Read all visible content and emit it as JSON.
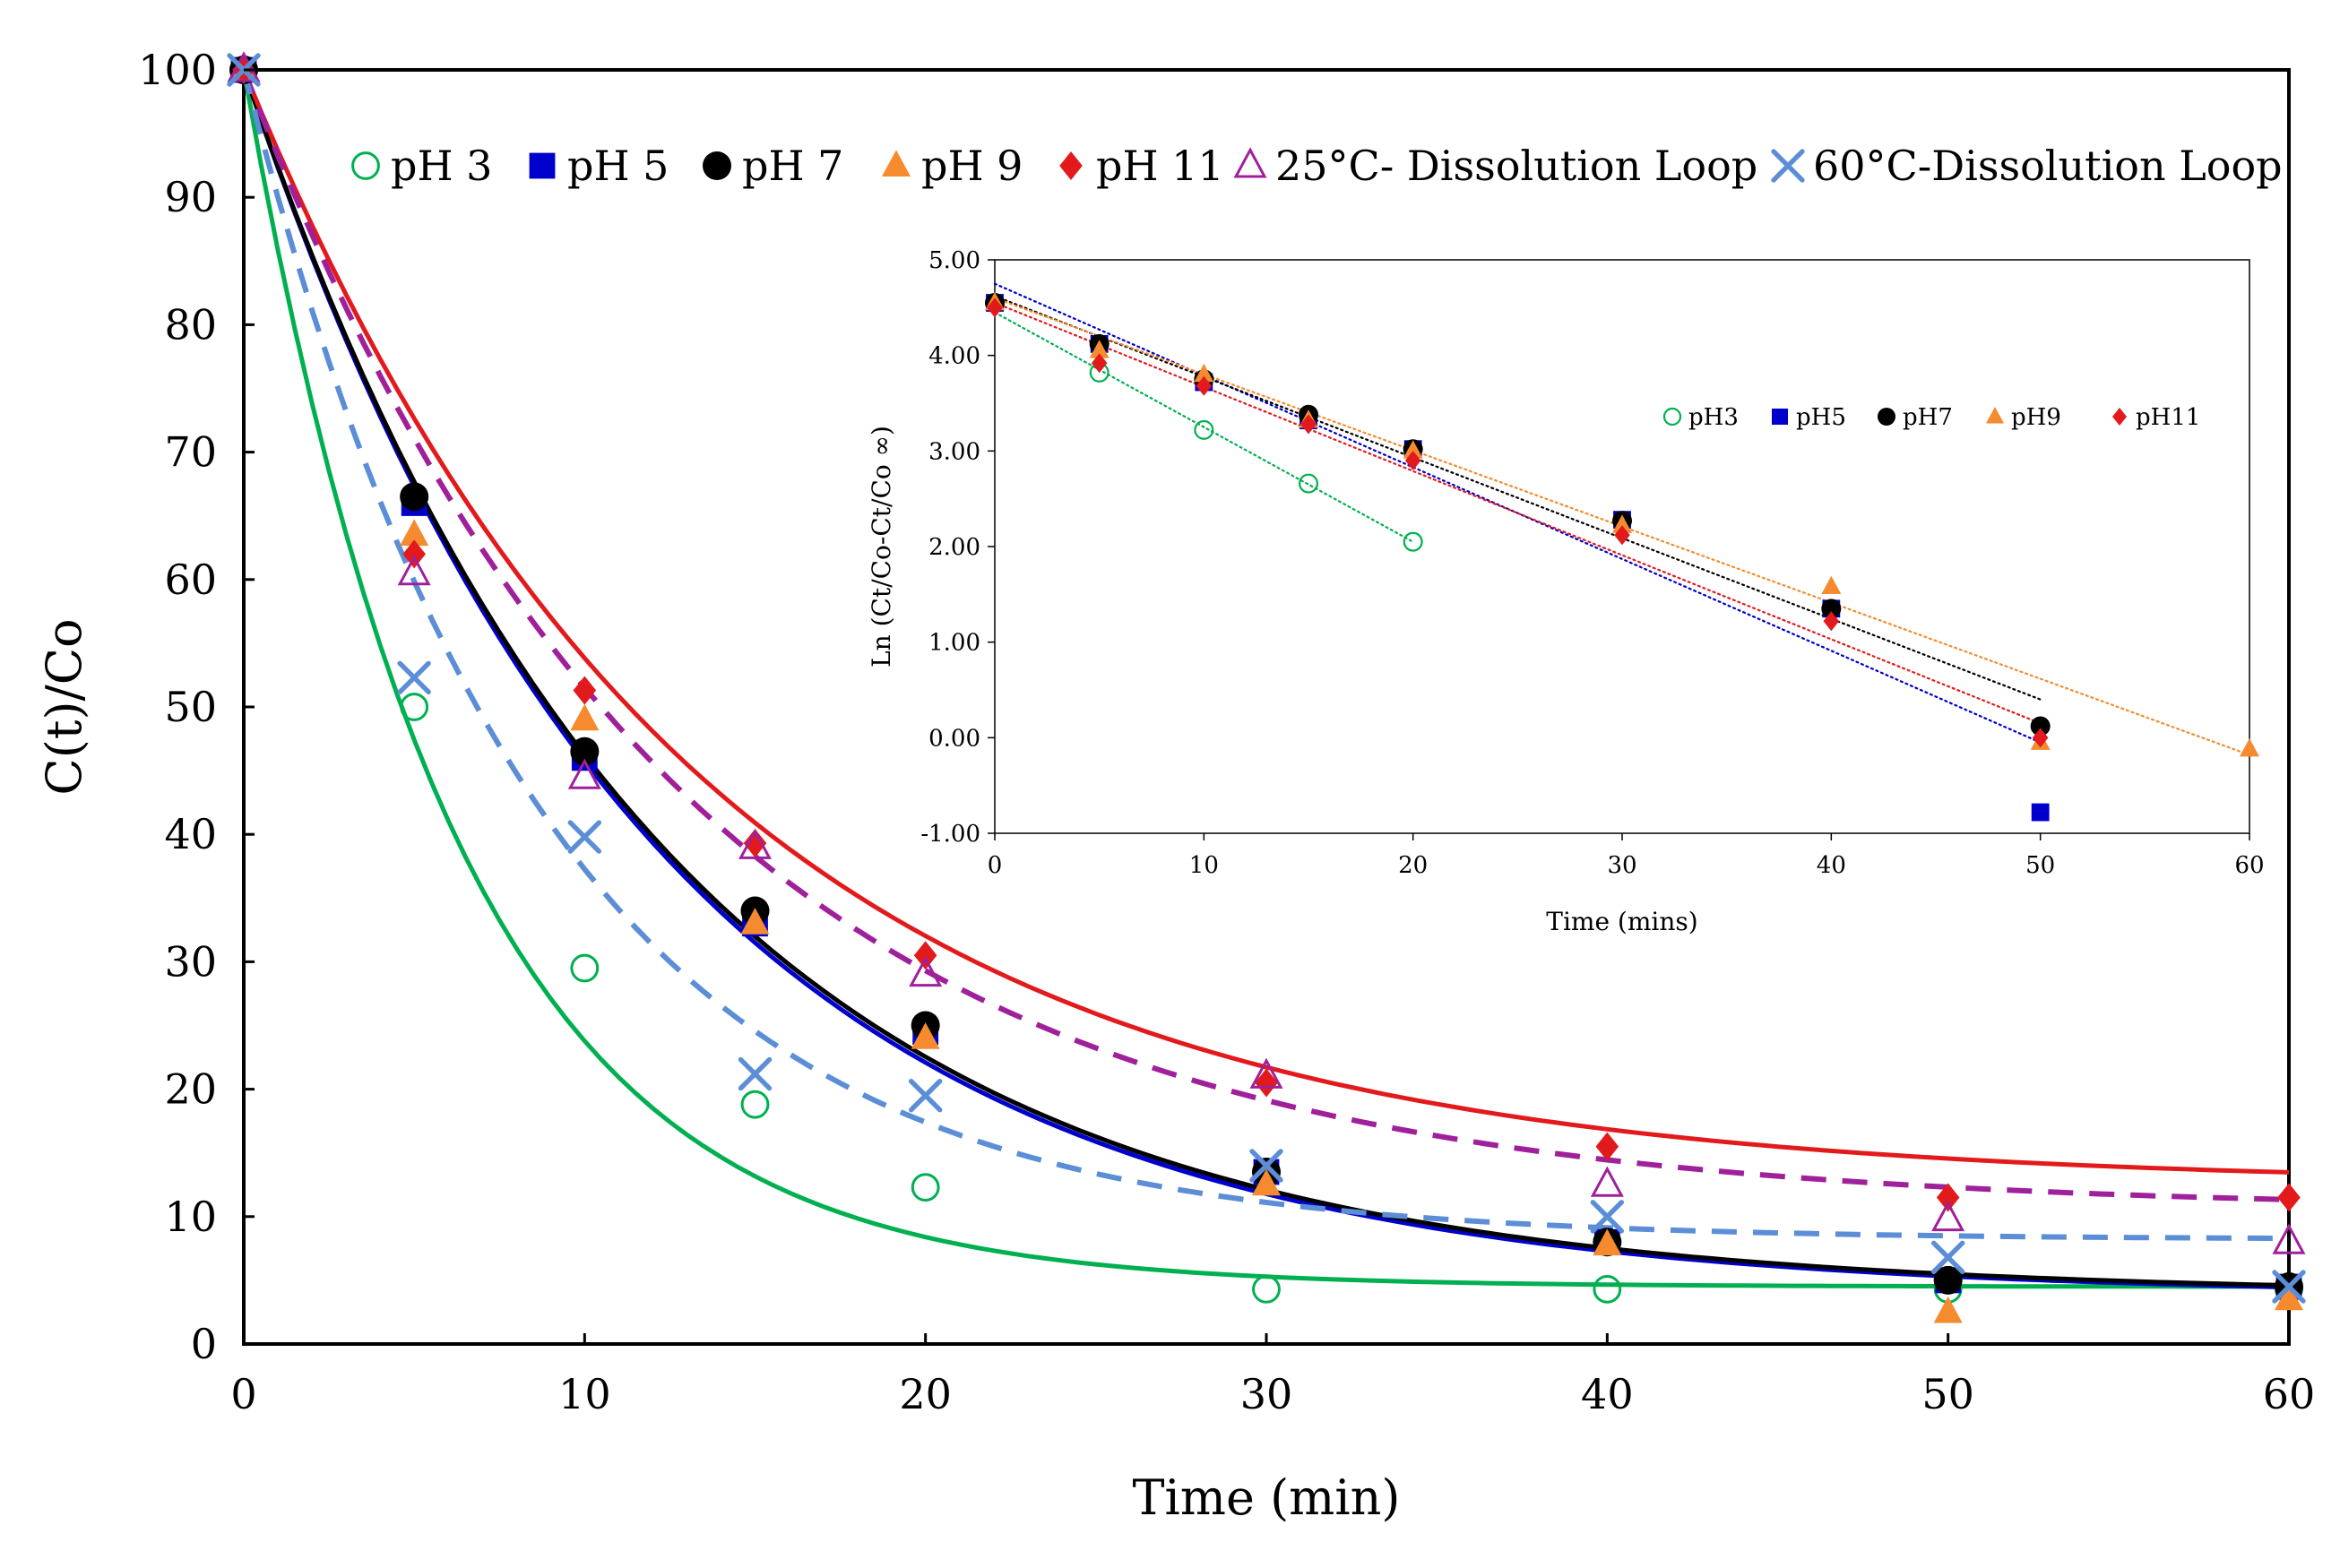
{
  "chart_data": [
    {
      "type": "scatter",
      "title": "",
      "xlabel": "Time (min)",
      "ylabel": "C(t)/Co",
      "xlim": [
        0,
        60
      ],
      "ylim": [
        0,
        100
      ],
      "xticks": [
        "0",
        "10",
        "20",
        "30",
        "40",
        "50",
        "60"
      ],
      "yticks": [
        "0",
        "10",
        "20",
        "30",
        "40",
        "50",
        "60",
        "70",
        "80",
        "90",
        "100"
      ],
      "legend_position": "top",
      "series": [
        {
          "name": "pH 3",
          "marker": "open-circle",
          "color": "#00B050",
          "x": [
            0,
            5,
            10,
            15,
            20,
            30,
            40,
            50,
            60
          ],
          "y": [
            100,
            50,
            29.5,
            18.8,
            12.3,
            4.3,
            4.3,
            4.3,
            4.3
          ],
          "fit": {
            "style": "solid",
            "plateau": 4.5,
            "k": 0.16
          }
        },
        {
          "name": "pH 5",
          "marker": "square",
          "color": "#0000CC",
          "x": [
            0,
            5,
            10,
            15,
            20,
            30,
            40,
            50,
            60
          ],
          "y": [
            100,
            66,
            46,
            33,
            24.5,
            13.5,
            8,
            5,
            4.5
          ],
          "fit": {
            "style": "solid",
            "plateau": 3.8,
            "k": 0.083
          }
        },
        {
          "name": "pH 7",
          "marker": "circle",
          "color": "#000000",
          "x": [
            0,
            5,
            10,
            15,
            20,
            30,
            40,
            50,
            60
          ],
          "y": [
            100,
            66.5,
            46.5,
            34,
            25,
            13.5,
            8,
            5,
            4.5
          ],
          "fit": {
            "style": "solid",
            "plateau": 3.9,
            "k": 0.082
          }
        },
        {
          "name": "pH 9",
          "marker": "triangle",
          "color": "#F58A2E",
          "x": [
            0,
            5,
            10,
            15,
            20,
            30,
            40,
            50,
            60
          ],
          "y": [
            100,
            63.5,
            49,
            33,
            24,
            12.5,
            7.8,
            2.5,
            3.5
          ]
        },
        {
          "name": "pH 11",
          "marker": "diamond",
          "color": "#E31A1C",
          "x": [
            0,
            5,
            10,
            15,
            20,
            30,
            40,
            50,
            60
          ],
          "y": [
            100,
            62,
            51.3,
            39.3,
            30.5,
            20.5,
            15.5,
            11.5,
            11.5
          ],
          "fit": {
            "style": "solid",
            "plateau": 12.5,
            "k": 0.075
          }
        },
        {
          "name": "25°C- Dissolution Loop",
          "marker": "open-triangle",
          "color": "#A0209C",
          "x": [
            0,
            5,
            10,
            15,
            20,
            30,
            40,
            50,
            60
          ],
          "y": [
            100,
            60.5,
            44.5,
            39,
            29,
            21,
            12.5,
            9.8,
            8
          ],
          "fit": {
            "style": "dashed",
            "plateau": 10.5,
            "k": 0.078
          }
        },
        {
          "name": "60°C-Dissolution Loop",
          "marker": "x",
          "color": "#5B8ED6",
          "x": [
            0,
            5,
            10,
            15,
            20,
            30,
            40,
            50,
            60
          ],
          "y": [
            100,
            52.3,
            39.8,
            21.2,
            19.5,
            14,
            10,
            6.8,
            4.5
          ],
          "fit": {
            "style": "dashed",
            "plateau": 8.2,
            "k": 0.115
          }
        }
      ]
    },
    {
      "type": "scatter",
      "title": "",
      "xlabel": "Time (mins)",
      "ylabel": "Ln (Ct/Co-Ct/Co ∞)",
      "xlim": [
        0,
        60
      ],
      "ylim": [
        -1,
        5
      ],
      "xticks": [
        "0",
        "10",
        "20",
        "30",
        "40",
        "50",
        "60"
      ],
      "yticks": [
        "-1.00",
        "0.00",
        "1.00",
        "2.00",
        "3.00",
        "4.00",
        "5.00"
      ],
      "legend_position": "right",
      "series": [
        {
          "name": "pH3",
          "marker": "open-circle",
          "color": "#00B050",
          "x": [
            0,
            5,
            10,
            15,
            20
          ],
          "y": [
            4.55,
            3.82,
            3.22,
            2.66,
            2.05
          ],
          "trend": {
            "x": [
              0,
              20
            ],
            "y": [
              4.45,
              2.05
            ]
          }
        },
        {
          "name": "pH5",
          "marker": "square",
          "color": "#0000CC",
          "x": [
            0,
            5,
            10,
            15,
            20,
            30,
            40,
            50
          ],
          "y": [
            4.55,
            4.12,
            3.72,
            3.32,
            3.02,
            2.28,
            1.35,
            -0.78
          ],
          "trend": {
            "x": [
              0,
              50
            ],
            "y": [
              4.75,
              -0.05
            ]
          }
        },
        {
          "name": "pH7",
          "marker": "circle",
          "color": "#000000",
          "x": [
            0,
            5,
            10,
            15,
            20,
            30,
            40,
            50
          ],
          "y": [
            4.55,
            4.12,
            3.75,
            3.38,
            3.02,
            2.27,
            1.35,
            0.12
          ],
          "trend": {
            "x": [
              0,
              50
            ],
            "y": [
              4.62,
              0.4
            ]
          }
        },
        {
          "name": "pH9",
          "marker": "triangle",
          "color": "#F58A2E",
          "x": [
            0,
            5,
            10,
            15,
            20,
            30,
            40,
            50,
            60
          ],
          "y": [
            4.55,
            4.05,
            3.8,
            3.32,
            3.0,
            2.22,
            1.58,
            -0.05,
            -0.12
          ],
          "trend": {
            "x": [
              0,
              60
            ],
            "y": [
              4.6,
              -0.18
            ]
          }
        },
        {
          "name": "pH11",
          "marker": "diamond",
          "color": "#E31A1C",
          "x": [
            0,
            5,
            10,
            15,
            20,
            30,
            40,
            50
          ],
          "y": [
            4.5,
            3.92,
            3.68,
            3.28,
            2.9,
            2.12,
            1.22,
            0.0
          ],
          "trend": {
            "x": [
              0,
              50
            ],
            "y": [
              4.55,
              0.15
            ]
          }
        }
      ]
    }
  ]
}
